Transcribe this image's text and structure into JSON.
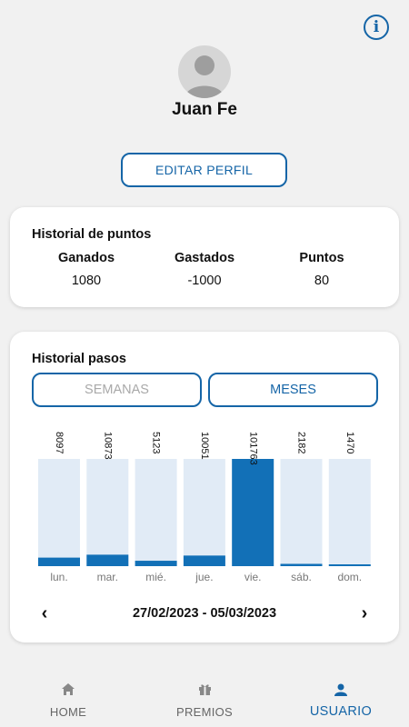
{
  "header": {
    "info_icon": "info-icon",
    "info_glyph": "i"
  },
  "profile": {
    "name": "Juan Fe",
    "edit_button": "EDITAR PERFIL"
  },
  "points_history": {
    "title": "Historial de puntos",
    "columns": [
      {
        "label": "Ganados",
        "value": "1080"
      },
      {
        "label": "Gastados",
        "value": "-1000"
      },
      {
        "label": "Puntos",
        "value": "80"
      }
    ]
  },
  "steps_history": {
    "title": "Historial pasos",
    "tab_weeks": "SEMANAS",
    "tab_months": "MESES",
    "date_range": "27/02/2023 - 05/03/2023",
    "prev_glyph": "‹",
    "next_glyph": "›"
  },
  "chart_data": {
    "type": "bar",
    "categories": [
      "lun.",
      "mar.",
      "mié.",
      "jue.",
      "vie.",
      "sáb.",
      "dom."
    ],
    "values": [
      8097,
      10873,
      5123,
      10051,
      101763,
      2182,
      1470
    ],
    "ylim": [
      0,
      101763
    ],
    "highlight_index": 4,
    "colors": {
      "bar": "#1270b7",
      "track": "#e1ebf6"
    }
  },
  "bottom_nav": {
    "items": [
      {
        "label": "HOME",
        "icon": "home-icon"
      },
      {
        "label": "PREMIOS",
        "icon": "gift-icon"
      },
      {
        "label": "USUARIO",
        "icon": "user-icon",
        "active": true
      }
    ]
  },
  "colors": {
    "accent": "#1565a7",
    "inactive": "#a9a9a9"
  }
}
